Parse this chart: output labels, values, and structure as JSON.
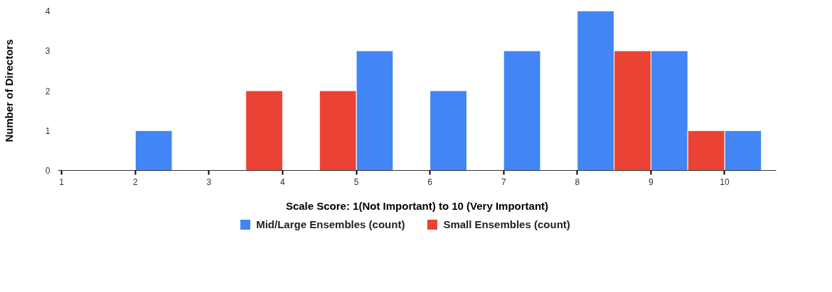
{
  "chart_data": {
    "type": "histogram",
    "xlabel": "Scale Score: 1(Not Important) to 10 (Very Important)",
    "ylabel": "Number of Directors",
    "bins": [
      1,
      1.5,
      2,
      2.5,
      3,
      3.5,
      4,
      4.5,
      5,
      5.5,
      6,
      6.5,
      7,
      7.5,
      8,
      8.5,
      9,
      9.5,
      10,
      10.5
    ],
    "series": [
      {
        "name": "Mid/Large Ensembles (count)",
        "color": "#4285f4",
        "values": [
          null,
          null,
          1,
          null,
          null,
          null,
          null,
          null,
          3,
          null,
          2,
          null,
          3,
          null,
          4,
          null,
          3,
          null,
          1
        ]
      },
      {
        "name": "Small Ensembles (count)",
        "color": "#ea4335",
        "values": [
          null,
          null,
          null,
          null,
          null,
          2,
          null,
          2,
          null,
          null,
          null,
          null,
          null,
          null,
          null,
          3,
          null,
          1,
          null
        ]
      }
    ],
    "xlim": [
      0.95,
      10.7
    ],
    "xticks": [
      1,
      2,
      3,
      4,
      5,
      6,
      7,
      8,
      9,
      10
    ],
    "ylim": [
      0,
      4
    ],
    "yticks": [
      0,
      1,
      2,
      3,
      4
    ],
    "grid": false,
    "legend": "bottom"
  }
}
